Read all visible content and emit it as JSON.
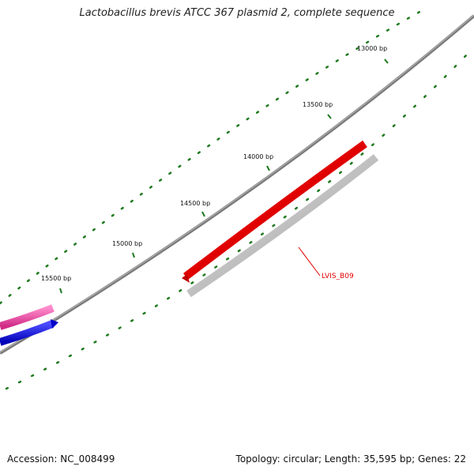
{
  "title": "Lactobacillus brevis ATCC 367 plasmid 2, complete sequence",
  "footer": {
    "accession": "Accession: NC_008499",
    "summary": "Topology: circular; Length: 35,595 bp; Genes: 22"
  },
  "ticks": [
    "13000 bp",
    "13500 bp",
    "14000 bp",
    "14500 bp",
    "15000 bp",
    "15500 bp"
  ],
  "features": {
    "gene_label": "LVIS_B09"
  },
  "colors": {
    "backbone": "#7a7a7a",
    "ticks": "#1f7a1f",
    "gene_forward": "#e00000",
    "gene_shadow": "#bdbdbd",
    "pink_feature": "#e8449a",
    "blue_feature": "#1a1ae0"
  }
}
